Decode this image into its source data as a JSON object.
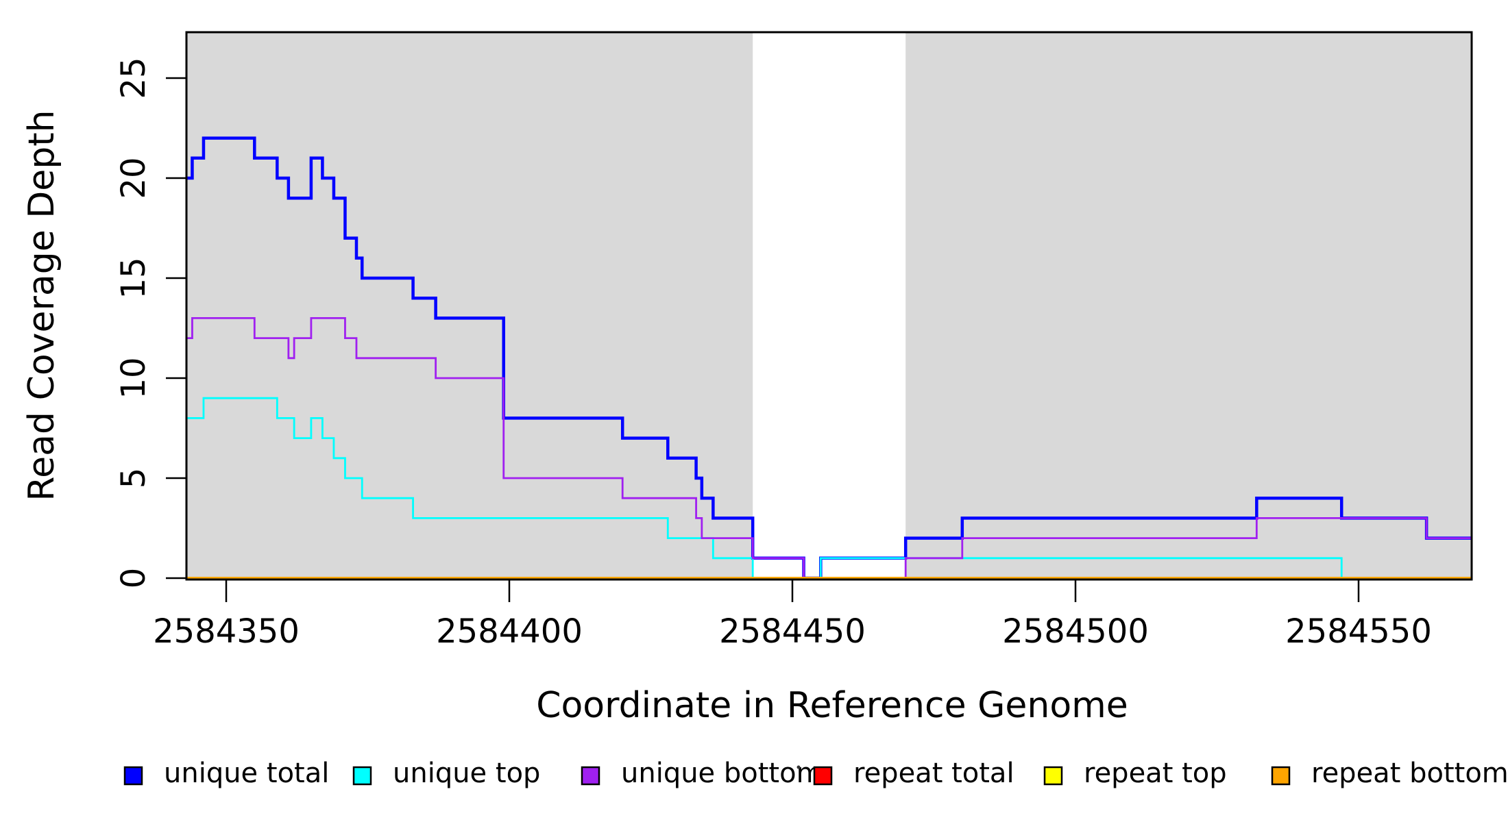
{
  "figure": {
    "background": "#ffffff",
    "border_color": "#000000"
  },
  "chart_data": {
    "type": "line",
    "subtype": "step-coverage",
    "title": "",
    "xlabel": "Coordinate in Reference Genome",
    "ylabel": "Read Coverage Depth",
    "xlim": [
      2584343,
      2584570
    ],
    "ylim": [
      0,
      27.3
    ],
    "grid": false,
    "x_ticks": [
      2584350,
      2584400,
      2584450,
      2584500,
      2584550
    ],
    "x_tick_labels": [
      "2584350",
      "2584400",
      "2584450",
      "2584500",
      "2584550"
    ],
    "y_ticks": [
      0,
      5,
      10,
      15,
      20,
      25
    ],
    "y_tick_labels": [
      "0",
      "5",
      "10",
      "15",
      "20",
      "25"
    ],
    "shaded_regions": {
      "color": "#d9d9d9",
      "x_ranges": [
        [
          2584343,
          2584443
        ],
        [
          2584470,
          2584570
        ]
      ]
    },
    "white_gap_x_range": [
      2584443,
      2584470
    ],
    "x_end": 2584570,
    "series": [
      {
        "name": "unique total",
        "color": "#0000ff",
        "line_width": 4.5,
        "steps": [
          [
            2584343,
            20
          ],
          [
            2584344,
            21
          ],
          [
            2584346,
            22
          ],
          [
            2584355,
            21
          ],
          [
            2584359,
            20
          ],
          [
            2584361,
            19
          ],
          [
            2584365,
            21
          ],
          [
            2584367,
            20
          ],
          [
            2584369,
            19
          ],
          [
            2584371,
            17
          ],
          [
            2584373,
            16
          ],
          [
            2584374,
            15
          ],
          [
            2584383,
            14
          ],
          [
            2584387,
            13
          ],
          [
            2584399,
            8
          ],
          [
            2584420,
            7
          ],
          [
            2584428,
            6
          ],
          [
            2584433,
            5
          ],
          [
            2584434,
            4
          ],
          [
            2584436,
            3
          ],
          [
            2584443,
            1
          ],
          [
            2584452,
            0
          ],
          [
            2584455,
            1
          ],
          [
            2584470,
            2
          ],
          [
            2584480,
            3
          ],
          [
            2584532,
            4
          ],
          [
            2584547,
            3
          ],
          [
            2584562,
            2
          ]
        ]
      },
      {
        "name": "unique top",
        "color": "#00ffff",
        "line_width": 2.8,
        "steps": [
          [
            2584343,
            8
          ],
          [
            2584346,
            9
          ],
          [
            2584359,
            8
          ],
          [
            2584362,
            7
          ],
          [
            2584365,
            8
          ],
          [
            2584367,
            7
          ],
          [
            2584369,
            6
          ],
          [
            2584371,
            5
          ],
          [
            2584374,
            4
          ],
          [
            2584383,
            3
          ],
          [
            2584428,
            2
          ],
          [
            2584436,
            1
          ],
          [
            2584443,
            0
          ],
          [
            2584455,
            1
          ],
          [
            2584547,
            0
          ]
        ]
      },
      {
        "name": "unique bottom",
        "color": "#a020f0",
        "line_width": 2.8,
        "steps": [
          [
            2584343,
            12
          ],
          [
            2584344,
            13
          ],
          [
            2584355,
            12
          ],
          [
            2584361,
            11
          ],
          [
            2584362,
            12
          ],
          [
            2584365,
            13
          ],
          [
            2584371,
            12
          ],
          [
            2584373,
            11
          ],
          [
            2584387,
            10
          ],
          [
            2584399,
            5
          ],
          [
            2584420,
            4
          ],
          [
            2584433,
            3
          ],
          [
            2584434,
            2
          ],
          [
            2584443,
            1
          ],
          [
            2584452,
            0
          ],
          [
            2584470,
            1
          ],
          [
            2584480,
            2
          ],
          [
            2584532,
            3
          ],
          [
            2584562,
            2
          ]
        ]
      },
      {
        "name": "repeat total",
        "color": "#ff0000",
        "line_width": 3.5,
        "steps": [
          [
            2584343,
            0
          ]
        ]
      },
      {
        "name": "repeat top",
        "color": "#ffff00",
        "line_width": 3.5,
        "steps": [
          [
            2584343,
            0
          ]
        ]
      },
      {
        "name": "repeat bottom",
        "color": "#ffa500",
        "line_width": 3.5,
        "steps": [
          [
            2584343,
            0
          ]
        ]
      }
    ],
    "legend": {
      "position": "bottom",
      "entries": [
        {
          "label": "unique total",
          "color": "#0000ff"
        },
        {
          "label": "unique top",
          "color": "#00ffff"
        },
        {
          "label": "unique bottom",
          "color": "#a020f0"
        },
        {
          "label": "repeat total",
          "color": "#ff0000"
        },
        {
          "label": "repeat top",
          "color": "#ffff00"
        },
        {
          "label": "repeat bottom",
          "color": "#ffa500"
        }
      ]
    },
    "stray_mark": {
      "present": true,
      "color": "#333333"
    }
  }
}
